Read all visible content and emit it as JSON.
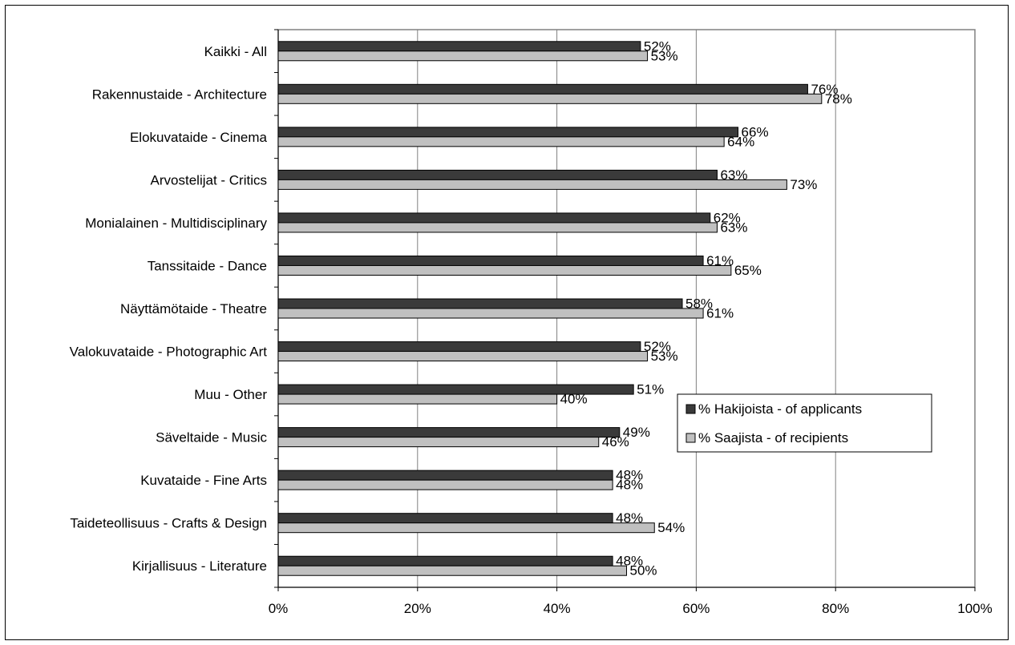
{
  "chart_data": {
    "type": "bar",
    "orientation": "horizontal",
    "categories": [
      "Kaikki   - All",
      "Rakennustaide  - Architecture",
      "Elokuvataide  - Cinema",
      "Arvostelijat  - Critics",
      "Monialainen  - Multidisciplinary",
      "Tanssitaide  - Dance",
      "Näyttämötaide  - Theatre",
      "Valokuvataide  - Photographic Art",
      "Muu   - Other",
      "Säveltaide  - Music",
      "Kuvataide  - Fine Arts",
      "Taideteollisuus  - Crafts & Design",
      "Kirjallisuus  - Literature"
    ],
    "series": [
      {
        "name": "% Hakijoista - of applicants",
        "color": "#3a3a3a",
        "values": [
          52,
          76,
          66,
          63,
          62,
          61,
          58,
          52,
          51,
          49,
          48,
          48,
          48
        ],
        "labels": [
          "52%",
          "76%",
          "66%",
          "63%",
          "62%",
          "61%",
          "58%",
          "52%",
          "51%",
          "49%",
          "48%",
          "48%",
          "48%"
        ]
      },
      {
        "name": "% Saajista - of recipients",
        "color": "#c0c0c0",
        "values": [
          53,
          78,
          64,
          73,
          63,
          65,
          61,
          53,
          40,
          46,
          48,
          54,
          50
        ],
        "labels": [
          "53%",
          "78%",
          "64%",
          "73%",
          "63%",
          "65%",
          "61%",
          "53%",
          "40%",
          "46%",
          "48%",
          "54%",
          "50%"
        ]
      }
    ],
    "xlim": [
      0,
      100
    ],
    "xticks": [
      "0%",
      "20%",
      "40%",
      "60%",
      "80%",
      "100%"
    ],
    "grid": true,
    "legend_position": "right-middle"
  }
}
